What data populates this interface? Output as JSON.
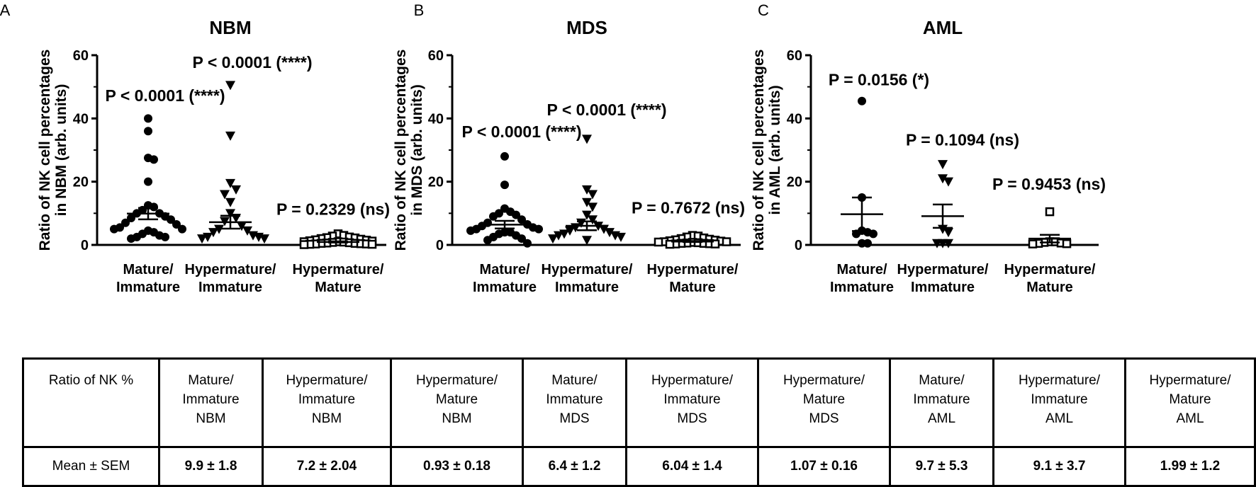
{
  "panel_letters": [
    "A",
    "B",
    "C"
  ],
  "ylabel_prefix": "Ratio of NK cell percentages",
  "chart_data": [
    {
      "type": "scatter",
      "title": "NBM",
      "ylabel_line1": "Ratio of NK cell percentages",
      "ylabel_line2": "in NBM (arb. units)",
      "ylim": [
        0,
        60
      ],
      "yticks": [
        "0",
        "20",
        "40",
        "60"
      ],
      "categories": [
        {
          "line1": "Mature/",
          "line2": "Immature"
        },
        {
          "line1": "Hypermature/",
          "line2": "Immature"
        },
        {
          "line1": "Hypermature/",
          "line2": "Mature"
        }
      ],
      "series": [
        {
          "marker": "circle",
          "mean": 9.9,
          "sem": 1.8,
          "values": [
            40,
            36,
            27.5,
            27,
            20,
            12.5,
            12,
            11,
            10,
            10,
            9,
            8.5,
            8,
            7,
            6.5,
            5.5,
            5,
            5,
            4.5,
            4,
            3.5,
            3,
            2.5,
            2.5,
            2
          ]
        },
        {
          "marker": "triangle",
          "mean": 7.2,
          "sem": 2.04,
          "values": [
            50.5,
            34.5,
            19.5,
            17.5,
            16,
            13.5,
            10,
            8.5,
            7.5,
            6,
            5,
            4.5,
            4,
            3,
            2.5,
            2.5,
            2,
            2
          ]
        },
        {
          "marker": "square",
          "mean": 0.93,
          "sem": 0.18,
          "values": [
            3.5,
            3,
            2.8,
            2.5,
            2.3,
            2.2,
            2,
            1.8,
            1.6,
            1.5,
            1.3,
            1.2,
            1,
            1,
            0.9,
            0.8,
            0.7,
            0.6,
            0.5,
            0.5,
            0.4,
            0.3,
            0.3,
            0.2,
            0.2,
            0.1
          ]
        }
      ],
      "annotations": [
        "P < 0.0001 (****)",
        "P < 0.0001 (****)",
        "P = 0.2329 (ns)"
      ],
      "annotation_y": [
        45.5,
        56,
        9.5
      ]
    },
    {
      "type": "scatter",
      "title": "MDS",
      "ylabel_line1": "Ratio of NK cell percentages",
      "ylabel_line2": "in MDS (arb. units)",
      "ylim": [
        0,
        60
      ],
      "yticks": [
        "0",
        "20",
        "40",
        "60"
      ],
      "categories": [
        {
          "line1": "Mature/",
          "line2": "Immature"
        },
        {
          "line1": "Hypermature/",
          "line2": "Immature"
        },
        {
          "line1": "Hypermature/",
          "line2": "Mature"
        }
      ],
      "series": [
        {
          "marker": "circle",
          "mean": 6.4,
          "sem": 1.2,
          "values": [
            28,
            19,
            11.5,
            10.5,
            10,
            9.5,
            9,
            8,
            7,
            6.5,
            6,
            5.5,
            5,
            5,
            4.5,
            4,
            4,
            3.5,
            3,
            2.5,
            2,
            1.5,
            0.5
          ]
        },
        {
          "marker": "triangle",
          "mean": 6.04,
          "sem": 1.4,
          "values": [
            33.5,
            17.5,
            16,
            13.5,
            12,
            9.5,
            8,
            7,
            6,
            5.5,
            5,
            4.5,
            4,
            3.5,
            3,
            3,
            2.5,
            2,
            1.5
          ]
        },
        {
          "marker": "square",
          "mean": 1.07,
          "sem": 0.16,
          "values": [
            3,
            2.8,
            2.5,
            2.2,
            2,
            1.8,
            1.6,
            1.5,
            1.3,
            1.2,
            1,
            1,
            0.9,
            0.8,
            0.7,
            0.6,
            0.5,
            0.5,
            0.4,
            0.3,
            0.3,
            0.2
          ]
        }
      ],
      "annotations": [
        "P < 0.0001 (****)",
        "P < 0.0001 (****)",
        "P = 0.7672 (ns)"
      ],
      "annotation_y": [
        34,
        41,
        10
      ]
    },
    {
      "type": "scatter",
      "title": "AML",
      "ylabel_line1": "Ratio of NK cell percentages",
      "ylabel_line2": "in AML (arb. units)",
      "ylim": [
        0,
        60
      ],
      "yticks": [
        "0",
        "20",
        "40",
        "60"
      ],
      "categories": [
        {
          "line1": "Mature/",
          "line2": "Immature"
        },
        {
          "line1": "Hypermature/",
          "line2": "Immature"
        },
        {
          "line1": "Hypermature/",
          "line2": "Mature"
        }
      ],
      "series": [
        {
          "marker": "circle",
          "mean": 9.7,
          "sem": 5.3,
          "values": [
            45.5,
            15,
            4.5,
            4,
            3.5,
            3.5,
            0.5,
            0.5
          ]
        },
        {
          "marker": "triangle",
          "mean": 9.1,
          "sem": 3.7,
          "values": [
            25.5,
            21,
            20,
            5,
            4,
            0.5,
            0.5,
            0.5
          ]
        },
        {
          "marker": "square",
          "mean": 1.99,
          "sem": 1.2,
          "values": [
            10.5,
            1,
            1,
            0.8,
            0.6,
            0.5,
            0.4,
            0.3
          ]
        }
      ],
      "annotations": [
        "P = 0.0156 (*)",
        "P = 0.1094 (ns)",
        "P = 0.9453 (ns)"
      ],
      "annotation_y": [
        50.5,
        31.5,
        17.5
      ]
    }
  ],
  "table": {
    "header_label": "Ratio of NK %",
    "row_label": "Mean ± SEM",
    "columns": [
      {
        "l1": "Mature/",
        "l2": "Immature",
        "l3": "NBM",
        "value": "9.9 ± 1.8"
      },
      {
        "l1": "Hypermature/",
        "l2": "Immature",
        "l3": "NBM",
        "value": "7.2 ± 2.04"
      },
      {
        "l1": "Hypermature/",
        "l2": "Mature",
        "l3": "NBM",
        "value": "0.93 ± 0.18"
      },
      {
        "l1": "Mature/",
        "l2": "Immature",
        "l3": "MDS",
        "value": "6.4 ± 1.2"
      },
      {
        "l1": "Hypermature/",
        "l2": "Immature",
        "l3": "MDS",
        "value": "6.04 ± 1.4"
      },
      {
        "l1": "Hypermature/",
        "l2": "Mature",
        "l3": "MDS",
        "value": "1.07 ± 0.16"
      },
      {
        "l1": "Mature/",
        "l2": "Immature",
        "l3": "AML",
        "value": "9.7 ± 5.3"
      },
      {
        "l1": "Hypermature/",
        "l2": "Immature",
        "l3": "AML",
        "value": "9.1 ± 3.7"
      },
      {
        "l1": "Hypermature/",
        "l2": "Mature",
        "l3": "AML",
        "value": "1.99 ± 1.2"
      }
    ]
  }
}
